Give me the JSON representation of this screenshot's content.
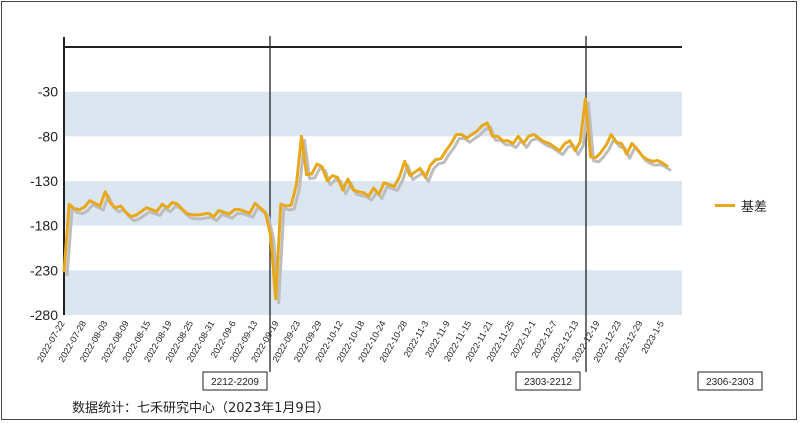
{
  "chart_data": {
    "type": "line",
    "title": "",
    "xlabel": "",
    "ylabel": "",
    "ylim": [
      -280,
      20
    ],
    "yticks": [
      -30,
      -80,
      -130,
      -180,
      -230,
      -280
    ],
    "legend": {
      "position": "right",
      "labels": [
        "基差"
      ]
    },
    "series": [
      {
        "name": "基差",
        "color": "#E8A81C",
        "values": [
          -232,
          -156,
          -161,
          -162,
          -159,
          -152,
          -155,
          -158,
          -142,
          -155,
          -160,
          -158,
          -165,
          -170,
          -168,
          -164,
          -160,
          -162,
          -164,
          -156,
          -160,
          -154,
          -156,
          -162,
          -167,
          -168,
          -168,
          -167,
          -166,
          -170,
          -163,
          -165,
          -167,
          -162,
          -162,
          -164,
          -166,
          -155,
          -160,
          -165,
          -190,
          -262,
          -156,
          -158,
          -157,
          -135,
          -80,
          -123,
          -122,
          -111,
          -114,
          -130,
          -124,
          -126,
          -140,
          -128,
          -140,
          -142,
          -143,
          -147,
          -138,
          -145,
          -132,
          -134,
          -136,
          -125,
          -108,
          -124,
          -120,
          -116,
          -126,
          -112,
          -106,
          -105,
          -96,
          -88,
          -78,
          -78,
          -82,
          -78,
          -74,
          -68,
          -65,
          -80,
          -80,
          -85,
          -85,
          -88,
          -80,
          -88,
          -80,
          -78,
          -82,
          -86,
          -88,
          -92,
          -96,
          -88,
          -85,
          -96,
          -86,
          -38,
          -103,
          -104,
          -98,
          -90,
          -78,
          -87,
          -88,
          -100,
          -88,
          -94,
          -102,
          -106,
          -108,
          -107,
          -110,
          -114
        ]
      }
    ],
    "x_tick_labels": [
      "2022-07-22",
      "2022-07-28",
      "2022-08-03",
      "2022-08-09",
      "2022-08-15",
      "2022-08-19",
      "2022-08-25",
      "2022-08-31",
      "2022-09-6",
      "2022-09-13",
      "2022-09-19",
      "2022-09-23",
      "2022-09-29",
      "2022-10-12",
      "2022-10-18",
      "2022-10-24",
      "2022-10-28",
      "2022-11-3",
      "2022-11-9",
      "2022-11-15",
      "2022-11-21",
      "2022-11-25",
      "2022-12-1",
      "2022-12-7",
      "2022-12-13",
      "2022-12-19",
      "2022-12-23",
      "2022-12-29",
      "2023-1-5"
    ],
    "contract_labels": [
      "2212-2209",
      "2303-2212",
      "2306-2303"
    ]
  },
  "source_note": "数据统计：七禾研究中心（2023年1月9日）"
}
